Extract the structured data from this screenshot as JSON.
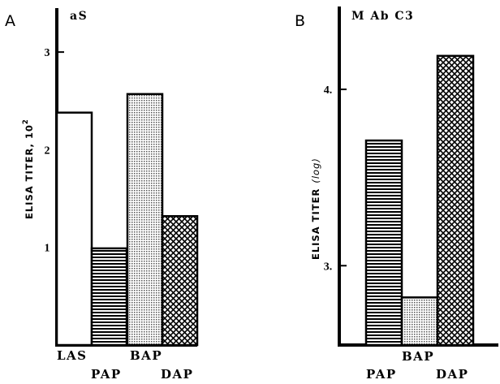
{
  "chart_data": [
    {
      "type": "bar",
      "panel": "A",
      "title": "aS",
      "ylabel": "ELISA TITER, 10",
      "ylabel_sup": "2",
      "yticks": [
        "1",
        "2",
        "3"
      ],
      "ylim": [
        0,
        3.45
      ],
      "categories": [
        "LAS",
        "PAP",
        "BAP",
        "DAP"
      ],
      "values": [
        2.38,
        0.99,
        2.57,
        1.32
      ],
      "fills": [
        "open",
        "horizontal-stripes",
        "stippled",
        "crosshatch"
      ],
      "grid": false
    },
    {
      "type": "bar",
      "panel": "B",
      "title": "M Ab C3",
      "ylabel": "ELISA TITER",
      "ylabel_suffix": "(log)",
      "yticks": [
        "3.",
        "4."
      ],
      "ylim": [
        2.55,
        4.47
      ],
      "categories": [
        "PAP",
        "BAP",
        "DAP"
      ],
      "values": [
        3.71,
        2.82,
        4.19
      ],
      "fills": [
        "horizontal-stripes",
        "stippled",
        "crosshatch"
      ],
      "grid": false
    }
  ]
}
